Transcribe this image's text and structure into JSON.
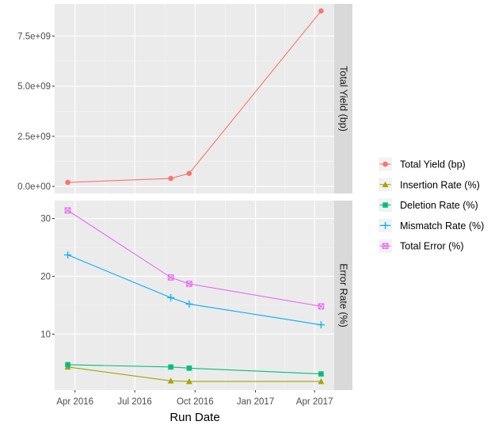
{
  "chart_data": {
    "type": "line",
    "xlabel": "Run Date",
    "x": [
      "2016-03-21",
      "2016-08-25",
      "2016-09-22",
      "2017-04-11"
    ],
    "x_ticks": [
      {
        "date": "2016-04-01",
        "label": "Apr 2016"
      },
      {
        "date": "2016-07-01",
        "label": "Jul 2016"
      },
      {
        "date": "2016-10-01",
        "label": "Oct 2016"
      },
      {
        "date": "2017-01-01",
        "label": "Jan 2017"
      },
      {
        "date": "2017-04-01",
        "label": "Apr 2017"
      }
    ],
    "xlim": [
      "2016-03-01",
      "2017-05-01"
    ],
    "grid": true,
    "legend_position": "right",
    "panels": [
      {
        "strip_label": "Total Yield (bp)",
        "ylim": [
          -350000000.0,
          9100000000.0
        ],
        "y_ticks": [
          {
            "value": 0,
            "label": "0.0e+00"
          },
          {
            "value": 2500000000.0,
            "label": "2.5e+09"
          },
          {
            "value": 5000000000.0,
            "label": "5.0e+09"
          },
          {
            "value": 7500000000.0,
            "label": "7.5e+09"
          }
        ],
        "series": [
          {
            "name": "Total Yield (bp)",
            "values": [
              200000000.0,
              400000000.0,
              650000000.0,
              8750000000.0
            ]
          }
        ]
      },
      {
        "strip_label": "Error Rate (%)",
        "ylim": [
          0.3,
          33.1
        ],
        "y_ticks": [
          {
            "value": 10,
            "label": "10"
          },
          {
            "value": 20,
            "label": "20"
          },
          {
            "value": 30,
            "label": "30"
          }
        ],
        "series": [
          {
            "name": "Insertion Rate (%)",
            "values": [
              4.3,
              1.9,
              1.8,
              1.8
            ]
          },
          {
            "name": "Deletion Rate (%)",
            "values": [
              4.7,
              4.3,
              4.1,
              3.1
            ]
          },
          {
            "name": "Mismatch Rate (%)",
            "values": [
              23.7,
              16.3,
              15.2,
              11.6
            ]
          },
          {
            "name": "Total Error (%)",
            "values": [
              31.4,
              19.8,
              18.7,
              14.8
            ]
          }
        ]
      }
    ],
    "legend": [
      {
        "name": "Total Yield (bp)",
        "color": "#F8766D",
        "shape": "circle"
      },
      {
        "name": "Insertion Rate (%)",
        "color": "#A3A500",
        "shape": "triangle"
      },
      {
        "name": "Deletion Rate (%)",
        "color": "#00BF7D",
        "shape": "square"
      },
      {
        "name": "Mismatch Rate (%)",
        "color": "#00B0F6",
        "shape": "plus"
      },
      {
        "name": "Total Error (%)",
        "color": "#E76BF3",
        "shape": "square-cross"
      }
    ]
  }
}
